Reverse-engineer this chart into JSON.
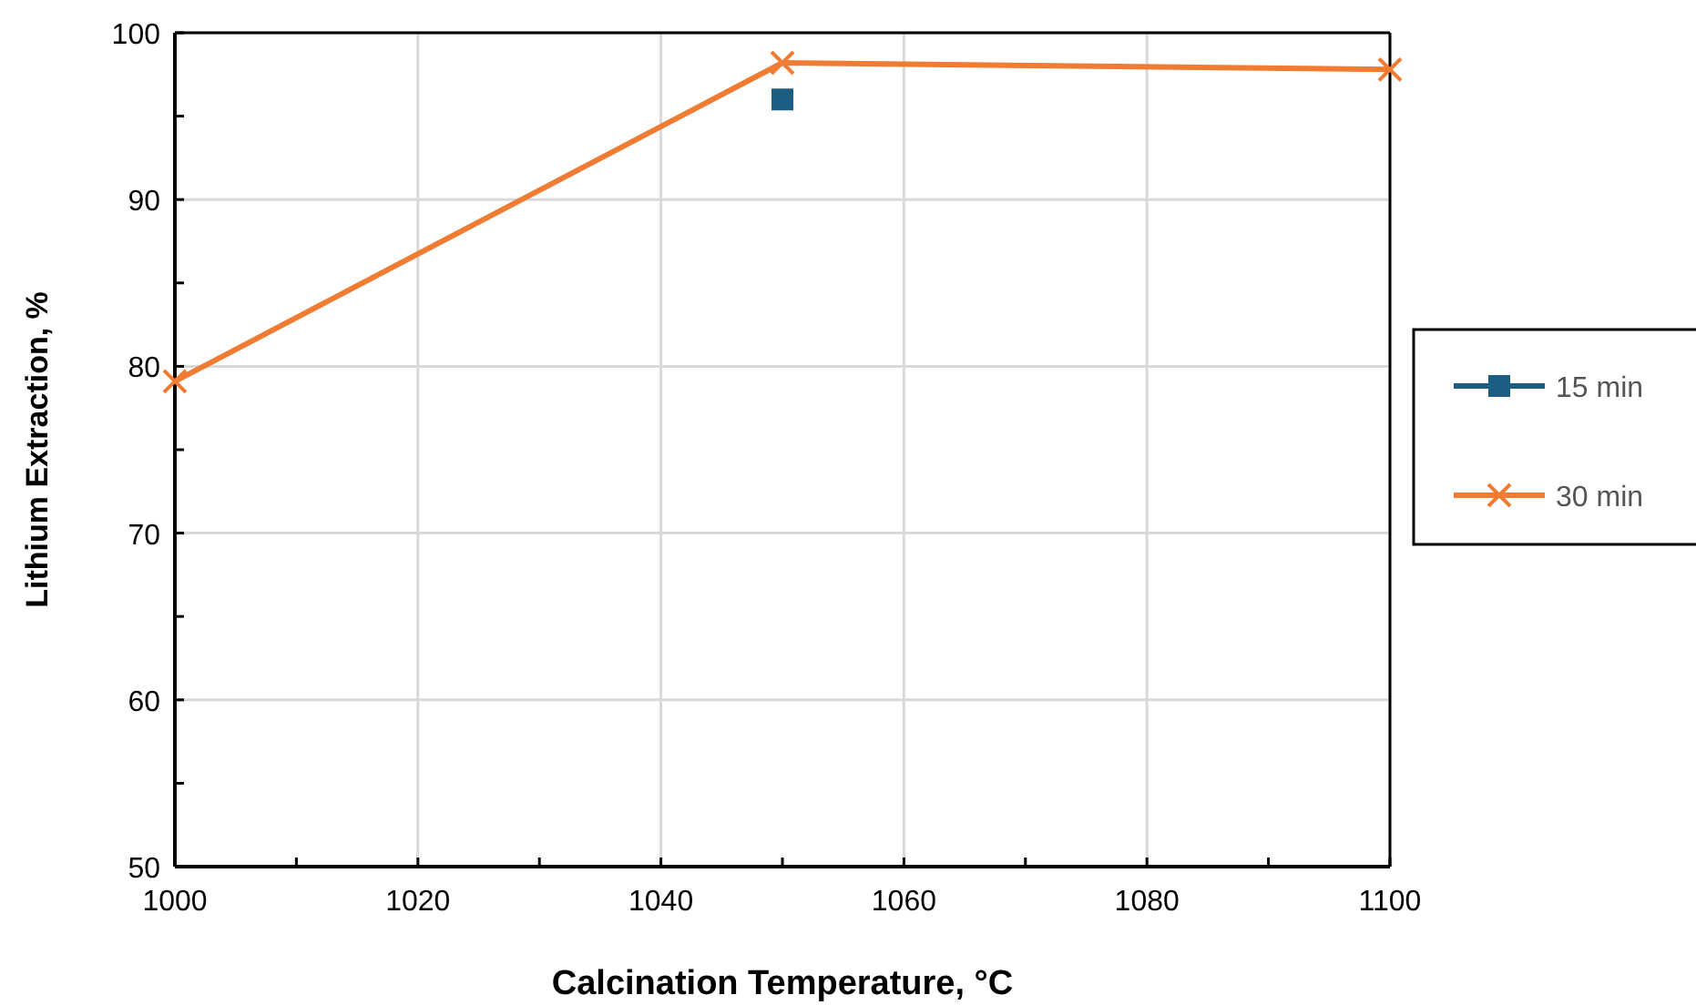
{
  "chart_data": {
    "type": "line",
    "xlabel": "Calcination Temperature, °C",
    "ylabel": "Lithium Extraction, %",
    "xlim": [
      1000,
      1100
    ],
    "xticks": [
      1000,
      {
        "value": 1010,
        "label": null
      },
      1020,
      {
        "value": 1030,
        "label": null
      },
      1040,
      {
        "value": 1050,
        "label": null
      },
      1060,
      {
        "value": 1070,
        "label": null
      },
      1080,
      {
        "value": 1090,
        "label": null
      },
      1100
    ],
    "ylim": [
      50,
      100
    ],
    "yticks": [
      50,
      {
        "value": 55,
        "label": null
      },
      60,
      {
        "value": 65,
        "label": null
      },
      70,
      {
        "value": 75,
        "label": null
      },
      80,
      {
        "value": 85,
        "label": null
      },
      90,
      {
        "value": 95,
        "label": null
      },
      100
    ],
    "grid": true,
    "legend": "right",
    "series": [
      {
        "name": "15 min",
        "color": "#1b5e82",
        "marker": "square",
        "x": [
          1050
        ],
        "values": [
          96.0
        ]
      },
      {
        "name": "30 min",
        "color": "#f07b33",
        "marker": "cross",
        "x": [
          1000,
          1050,
          1100
        ],
        "values": [
          79.1,
          98.2,
          97.8
        ]
      }
    ]
  }
}
